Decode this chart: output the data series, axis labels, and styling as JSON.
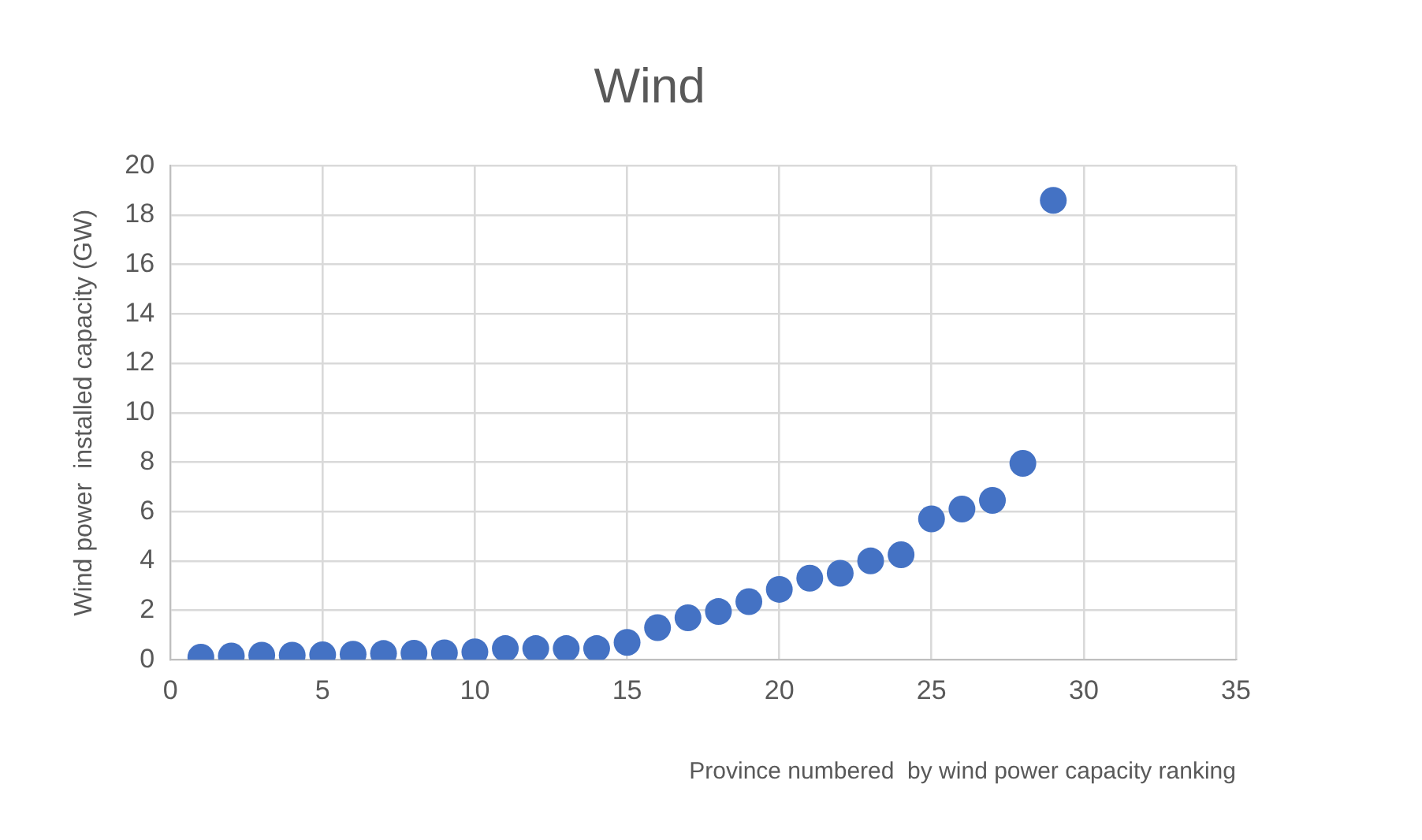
{
  "chart_data": {
    "type": "scatter",
    "title": "Wind",
    "xlabel": "Province numbered  by wind power capacity ranking",
    "ylabel": "Wind power  installed capacity (GW)",
    "x": [
      1,
      2,
      3,
      4,
      5,
      6,
      7,
      8,
      9,
      10,
      11,
      12,
      13,
      14,
      15,
      16,
      17,
      18,
      19,
      20,
      21,
      22,
      23,
      24,
      25,
      26,
      27,
      28,
      29
    ],
    "series": [
      {
        "color": "#4472c4",
        "values": [
          0.1,
          0.15,
          0.18,
          0.18,
          0.2,
          0.22,
          0.25,
          0.26,
          0.28,
          0.32,
          0.45,
          0.45,
          0.45,
          0.45,
          0.7,
          1.3,
          1.7,
          1.95,
          2.35,
          2.85,
          3.3,
          3.5,
          4.0,
          4.25,
          5.7,
          6.1,
          6.45,
          7.95,
          18.6
        ]
      }
    ],
    "xlim": [
      0,
      35
    ],
    "xticks": [
      0,
      5,
      10,
      15,
      20,
      25,
      30,
      35
    ],
    "ylim": [
      0,
      20
    ],
    "yticks": [
      0,
      2,
      4,
      6,
      8,
      10,
      12,
      14,
      16,
      18,
      20
    ],
    "grid": true,
    "legend": false,
    "marker": "circle"
  }
}
